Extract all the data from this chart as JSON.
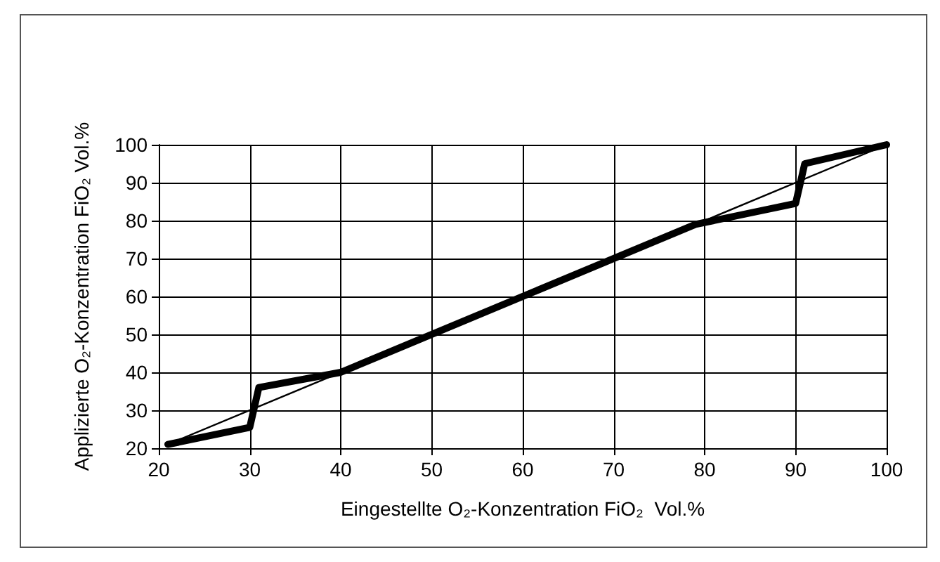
{
  "chart_data": {
    "type": "line",
    "xlabel": "Eingestellte O₂-Konzentration FiO₂  Vol.%",
    "ylabel": "Applizierte O₂-Konzentration FiO₂ Vol.%",
    "xlim": [
      20,
      100
    ],
    "xticks": [
      20,
      30,
      40,
      50,
      60,
      70,
      80,
      90,
      100
    ],
    "ylim": [
      20,
      100
    ],
    "yticks": [
      20,
      30,
      40,
      50,
      60,
      70,
      80,
      90,
      100
    ],
    "grid": true,
    "marker": "none",
    "line_style": "solid",
    "series": [
      {
        "color": "#000000",
        "x": [
          21,
          100
        ],
        "values": [
          21,
          100
        ]
      },
      {
        "color": "#000000",
        "x": [
          21,
          30,
          31,
          40,
          79,
          90,
          91,
          100
        ],
        "values": [
          21,
          25.5,
          36,
          40,
          79,
          84.5,
          95,
          100
        ]
      }
    ]
  }
}
